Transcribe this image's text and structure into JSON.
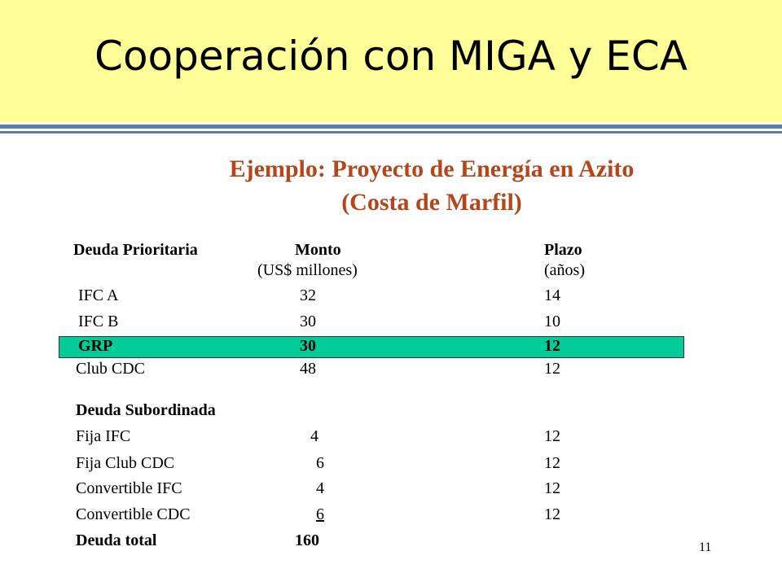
{
  "header": {
    "title": "Cooperación con MIGA y ECA"
  },
  "example": {
    "line1": "Ejemplo:  Proyecto de Energía en Azito",
    "line2": "(Costa de Marfil)"
  },
  "table": {
    "headers": {
      "col1": "Deuda Prioritaria",
      "col2": "Monto",
      "col2_sub": "(US$ millones)",
      "col3": "Plazo",
      "col3_sub": "(años)"
    },
    "senior_rows": [
      {
        "name": "IFC A",
        "amount": "32",
        "term": "14"
      },
      {
        "name": "IFC B",
        "amount": "30",
        "term": "10"
      },
      {
        "name": "GRP",
        "amount": "30",
        "term": "12"
      },
      {
        "name": "Club CDC",
        "amount": "48",
        "term": "12"
      }
    ],
    "subordinated_heading": "Deuda Subordinada",
    "subordinated_rows": [
      {
        "name": "Fija IFC",
        "amount": "4",
        "term": "12"
      },
      {
        "name": "Fija Club CDC",
        "amount": "6",
        "term": "12"
      },
      {
        "name": "Convertible IFC",
        "amount": "4",
        "term": "12"
      },
      {
        "name": "Convertible CDC",
        "amount": "6",
        "term": "12"
      }
    ],
    "total_label": "Deuda total",
    "total_amount": "160"
  },
  "page_number": "11",
  "colors": {
    "title_band": "#ffff99",
    "highlight": "#00cc99",
    "subtitle": "#b5451b",
    "rule": "#5b7fa8"
  }
}
